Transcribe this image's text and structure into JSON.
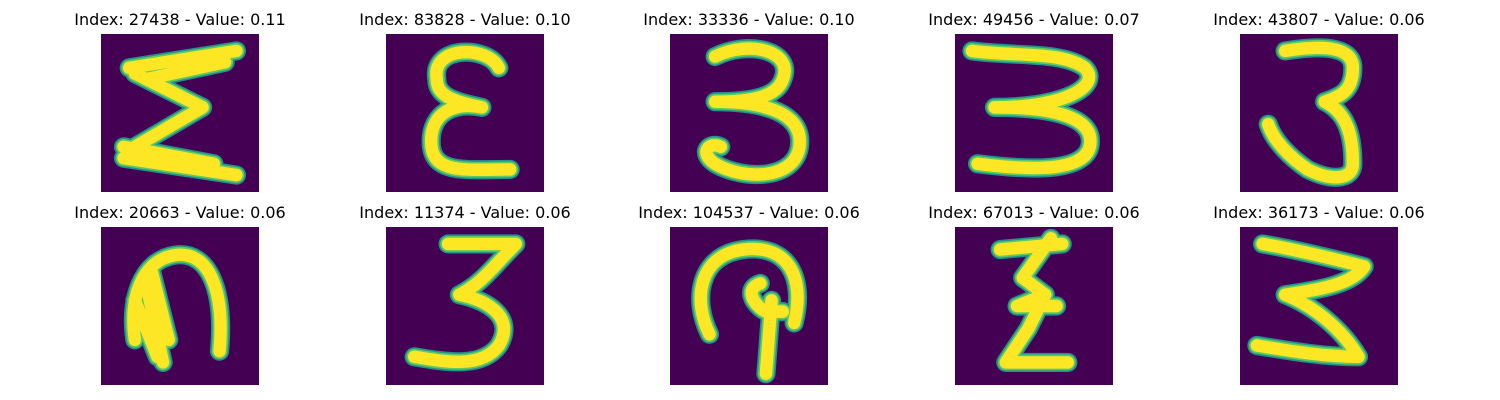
{
  "colors": {
    "background": "#440154",
    "stroke_edge": "#21918c",
    "stroke_mid": "#5ec962",
    "stroke_core": "#fde725"
  },
  "panels": [
    {
      "title": "Index: 27438 - Value: 0.11",
      "digit": "3",
      "depiction": "sideways-3-like-E"
    },
    {
      "title": "Index: 83828 - Value: 0.10",
      "digit": "3",
      "depiction": "E-shape"
    },
    {
      "title": "Index: 33336 - Value: 0.10",
      "digit": "3",
      "depiction": "upright-3"
    },
    {
      "title": "Index: 49456 - Value: 0.07",
      "digit": "3",
      "depiction": "wide-3"
    },
    {
      "title": "Index: 43807 - Value: 0.06",
      "digit": "3",
      "depiction": "narrow-3"
    },
    {
      "title": "Index: 20663 - Value: 0.06",
      "digit": "3",
      "depiction": "blob-arch"
    },
    {
      "title": "Index: 11374 - Value: 0.06",
      "digit": "3",
      "depiction": "upright-3"
    },
    {
      "title": "Index: 104537 - Value: 0.06",
      "digit": "3",
      "depiction": "hook-shape"
    },
    {
      "title": "Index: 67013 - Value: 0.06",
      "digit": "3",
      "depiction": "zigzag-3"
    },
    {
      "title": "Index: 36173 - Value: 0.06",
      "digit": "3",
      "depiction": "reversed-E-3"
    }
  ]
}
